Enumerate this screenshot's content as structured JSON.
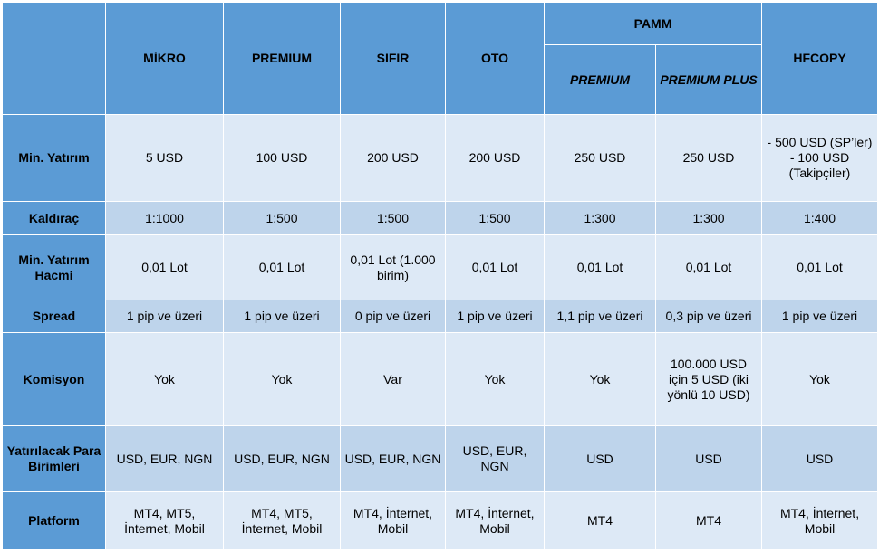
{
  "header": {
    "pamm_group": "PAMM",
    "columns": [
      "MİKRO",
      "PREMIUM",
      "SIFIR",
      "OTO",
      "PREMIUM",
      "PREMIUM PLUS",
      "HFCOPY"
    ]
  },
  "rows": [
    {
      "label": "Min. Yatırım",
      "cells": [
        "5 USD",
        "100 USD",
        "200 USD",
        "200 USD",
        "250 USD",
        "250 USD",
        "-  500 USD (SP’ler)\n- 100 USD (Takipçiler)"
      ]
    },
    {
      "label": "Kaldıraç",
      "cells": [
        "1:1000",
        "1:500",
        "1:500",
        "1:500",
        "1:300",
        "1:300",
        "1:400"
      ]
    },
    {
      "label": "Min. Yatırım Hacmi",
      "cells": [
        "0,01 Lot",
        "0,01 Lot",
        "0,01 Lot (1.000 birim)",
        "0,01 Lot",
        "0,01 Lot",
        "0,01 Lot",
        "0,01 Lot"
      ]
    },
    {
      "label": "Spread",
      "cells": [
        "1 pip ve üzeri",
        "1 pip ve üzeri",
        "0 pip ve üzeri",
        "1 pip ve üzeri",
        "1,1 pip ve üzeri",
        "0,3 pip ve üzeri",
        "1 pip ve üzeri"
      ]
    },
    {
      "label": "Komisyon",
      "cells": [
        "Yok",
        "Yok",
        "Var",
        "Yok",
        "Yok",
        "100.000 USD için 5 USD (iki yönlü 10 USD)",
        "Yok"
      ]
    },
    {
      "label": "Yatırılacak Para Birimleri",
      "cells": [
        "USD, EUR, NGN",
        "USD, EUR, NGN",
        "USD, EUR, NGN",
        "USD, EUR, NGN",
        "USD",
        "USD",
        "USD"
      ]
    },
    {
      "label": "Platform",
      "cells": [
        "MT4, MT5, İnternet, Mobil",
        "MT4, MT5, İnternet, Mobil",
        "MT4, İnternet, Mobil",
        "MT4, İnternet, Mobil",
        "MT4",
        "MT4",
        "MT4, İnternet, Mobil"
      ]
    }
  ],
  "colors": {
    "header_blue": "#5b9bd5",
    "row_light": "#dde9f6",
    "row_dark": "#bed4eb"
  }
}
